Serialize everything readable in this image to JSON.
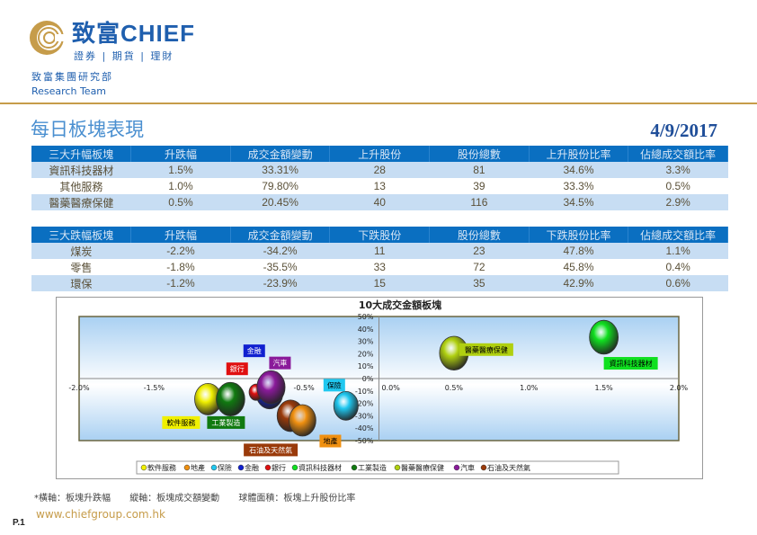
{
  "header": {
    "brand": "致富CHIEF",
    "tagline": "證券 | 期貨 | 理財",
    "department": "致富集團研究部",
    "team": "Research Team"
  },
  "report": {
    "title": "每日板塊表現",
    "date": "4/9/2017"
  },
  "top_table": {
    "headers": [
      "三大升幅板塊",
      "升跌幅",
      "成交金額變動",
      "上升股份",
      "股份總數",
      "上升股份比率",
      "佔總成交額比率"
    ],
    "rows": [
      [
        "資訊科技器材",
        "1.5%",
        "33.31%",
        "28",
        "81",
        "34.6%",
        "3.3%"
      ],
      [
        "其他服務",
        "1.0%",
        "79.80%",
        "13",
        "39",
        "33.3%",
        "0.5%"
      ],
      [
        "醫藥醫療保健",
        "0.5%",
        "20.45%",
        "40",
        "116",
        "34.5%",
        "2.9%"
      ]
    ]
  },
  "bottom_table": {
    "headers": [
      "三大跌幅板塊",
      "升跌幅",
      "成交金額變動",
      "下跌股份",
      "股份總數",
      "下跌股份比率",
      "佔總成交額比率"
    ],
    "rows": [
      [
        "煤炭",
        "-2.2%",
        "-34.2%",
        "11",
        "23",
        "47.8%",
        "1.1%"
      ],
      [
        "零售",
        "-1.8%",
        "-35.5%",
        "33",
        "72",
        "45.8%",
        "0.4%"
      ],
      [
        "環保",
        "-1.2%",
        "-23.9%",
        "15",
        "35",
        "42.9%",
        "0.6%"
      ]
    ]
  },
  "chart_data": {
    "type": "bubble",
    "title": "10大成交金額板塊",
    "xlim": [
      -2.0,
      2.0
    ],
    "ylim": [
      -50,
      50
    ],
    "x_ticks": [
      "-2.0%",
      "-1.5%",
      "-1.0%",
      "-0.5%",
      "0.0%",
      "0.5%",
      "1.0%",
      "1.5%",
      "2.0%"
    ],
    "y_ticks": [
      "50%",
      "40%",
      "30%",
      "20%",
      "10%",
      "0%",
      "-10%",
      "-20%",
      "-30%",
      "-40%",
      "-50%"
    ],
    "legend_position": "bottom",
    "series": [
      {
        "name": "軟件服務",
        "x": -1.14,
        "y": -16.6,
        "size": 30,
        "color": "#f0f000",
        "label_color": "#000"
      },
      {
        "name": "地產",
        "x": -0.51,
        "y": -33.7,
        "size": 30,
        "color": "#f09010",
        "label_color": "#000"
      },
      {
        "name": "保險",
        "x": -0.22,
        "y": -22,
        "size": 25,
        "color": "#20c8f0",
        "label_color": "#000"
      },
      {
        "name": "金融",
        "x": -0.73,
        "y": -11.7,
        "size": 30,
        "color": "#1020d0",
        "label_color": "#fff"
      },
      {
        "name": "銀行",
        "x": -0.82,
        "y": -11,
        "size": 8,
        "color": "#e01010",
        "label_color": "#fff"
      },
      {
        "name": "資訊科技器材",
        "x": 1.5,
        "y": 33.31,
        "size": 34.6,
        "color": "#10e020",
        "label_color": "#000"
      },
      {
        "name": "工業製造",
        "x": -0.99,
        "y": -16.6,
        "size": 34,
        "color": "#107a10",
        "label_color": "#fff"
      },
      {
        "name": "醫藥醫療保健",
        "x": 0.5,
        "y": 20.45,
        "size": 34.5,
        "color": "#b0d010",
        "label_color": "#000"
      },
      {
        "name": "汽車",
        "x": -0.72,
        "y": -7,
        "size": 33,
        "color": "#8a1a9a",
        "label_color": "#fff"
      },
      {
        "name": "石油及天然氣",
        "x": -0.59,
        "y": -30,
        "size": 30,
        "color": "#9a3a0a",
        "label_color": "#fff"
      }
    ]
  },
  "footnote": {
    "x_axis": "*橫軸：板塊升跌幅",
    "y_axis": "縱軸：板塊成交額變動",
    "bubble": "球體面積：板塊上升股份比率"
  },
  "footer": {
    "page": "P.1",
    "url": "www.chiefgroup.com.hk"
  }
}
